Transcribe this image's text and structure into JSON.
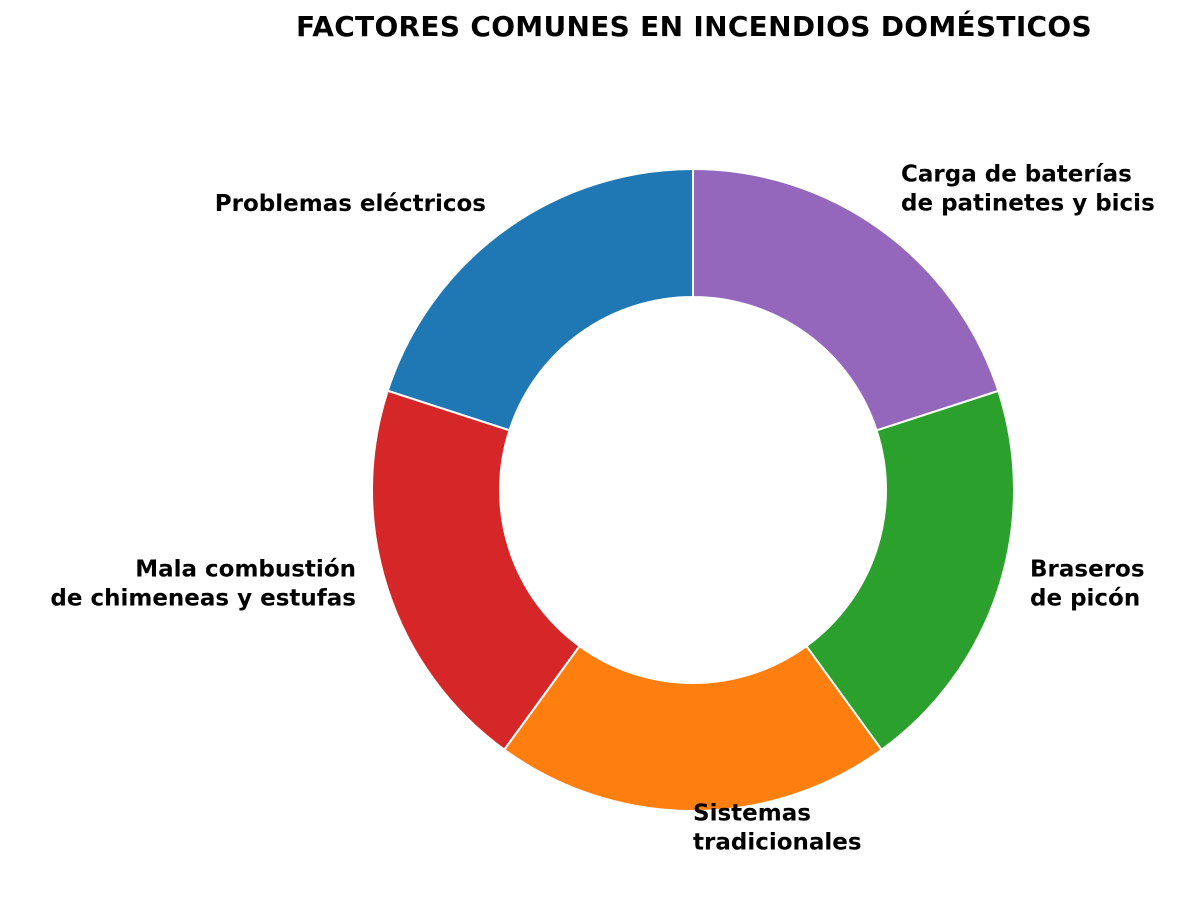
{
  "chart_data": {
    "type": "pie",
    "variant": "donut",
    "title": "FACTORES COMUNES EN INCENDIOS DOMÉSTICOS",
    "categories": [
      "Problemas eléctricos",
      "Mala combustión de chimeneas y estufas",
      "Sistemas tradicionales",
      "Braseros de picón",
      "Carga de baterías de patinetes y bicis"
    ],
    "values": [
      20,
      20,
      20,
      20,
      20
    ],
    "colors": [
      "#1f77b4",
      "#d62728",
      "#ff7f0e",
      "#2ca02c",
      "#9467bd"
    ],
    "label_lines": [
      [
        "Problemas eléctricos"
      ],
      [
        "Mala combustión",
        "de chimeneas y estufas"
      ],
      [
        "Sistemas",
        "tradicionales"
      ],
      [
        "Braseros",
        "de picón"
      ],
      [
        "Carga de baterías",
        "de patinetes y bicis"
      ]
    ],
    "start_angle": 90,
    "direction": "counterclockwise",
    "legend": "none",
    "grid": false
  }
}
